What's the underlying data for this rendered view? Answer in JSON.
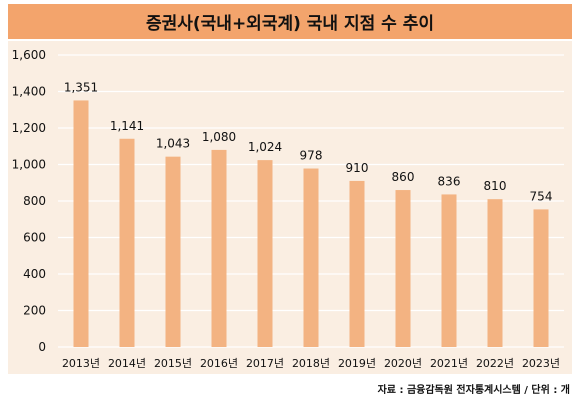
{
  "header": {
    "title": "증권사(국내+외국계) 국내 지점 수 추이"
  },
  "footer": {
    "source": "자료 : 금융감독원 전자통계시스템 / 단위 : 개"
  },
  "colors": {
    "title_bg": "#f3a46c",
    "plot_bg": "#faeee2",
    "bar": "#f3b382",
    "grid": "#ffffff"
  },
  "chart_data": {
    "type": "bar",
    "title": "증권사(국내+외국계) 국내 지점 수 추이",
    "xlabel": "",
    "ylabel": "",
    "unit": "개",
    "categories": [
      "2013년",
      "2014년",
      "2015년",
      "2016년",
      "2017년",
      "2018년",
      "2019년",
      "2020년",
      "2021년",
      "2022년",
      "2023년"
    ],
    "values": [
      1351,
      1141,
      1043,
      1080,
      1024,
      978,
      910,
      860,
      836,
      810,
      754
    ],
    "data_labels": [
      "1,351",
      "1,141",
      "1,043",
      "1,080",
      "1,024",
      "978",
      "910",
      "860",
      "836",
      "810",
      "754"
    ],
    "ylim": [
      0,
      1600
    ],
    "yticks": [
      0,
      200,
      400,
      600,
      800,
      1000,
      1200,
      1400,
      1600
    ],
    "ytick_labels": [
      "0",
      "200",
      "400",
      "600",
      "800",
      "1,000",
      "1,200",
      "1,400",
      "1,600"
    ],
    "grid": true,
    "legend": "none"
  }
}
